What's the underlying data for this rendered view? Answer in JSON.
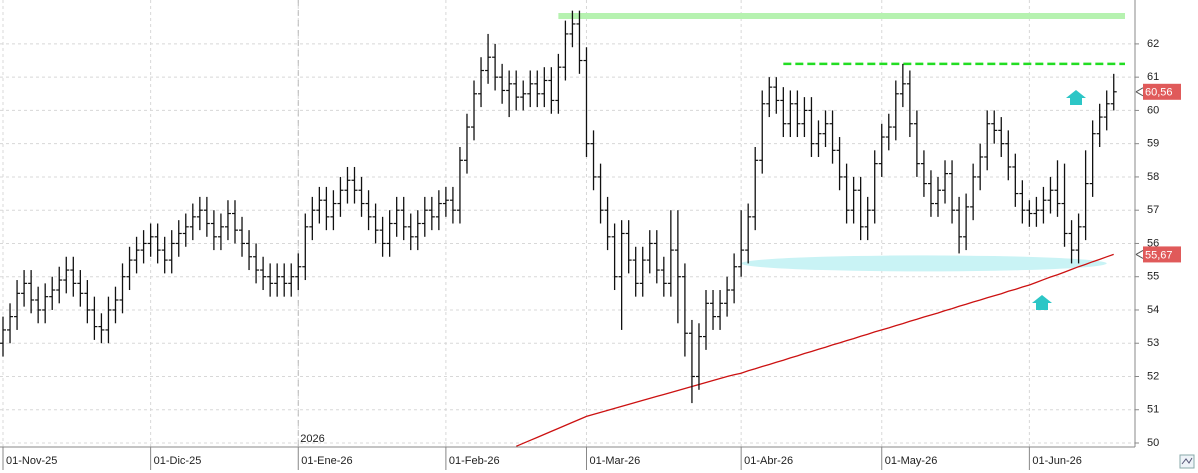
{
  "chart_data": {
    "type": "ohlc",
    "categories": [
      "01-Nov-25",
      null,
      null,
      null,
      null,
      null,
      null,
      null,
      null,
      null,
      null,
      null,
      null,
      null,
      null,
      null,
      null,
      null,
      null,
      null,
      null,
      "01-Dic-25",
      null,
      null,
      null,
      null,
      null,
      null,
      null,
      null,
      null,
      null,
      null,
      null,
      null,
      null,
      null,
      null,
      null,
      null,
      null,
      null,
      "01-Ene-26",
      null,
      null,
      null,
      null,
      null,
      null,
      null,
      null,
      null,
      null,
      null,
      null,
      null,
      null,
      null,
      null,
      null,
      null,
      null,
      null,
      "01-Feb-26",
      null,
      null,
      null,
      null,
      null,
      null,
      null,
      null,
      null,
      null,
      null,
      null,
      null,
      null,
      null,
      null,
      null,
      null,
      null,
      "01-Mar-26",
      null,
      null,
      null,
      null,
      null,
      null,
      null,
      null,
      null,
      null,
      null,
      null,
      null,
      null,
      null,
      null,
      null,
      null,
      null,
      null,
      null,
      "01-Abr-26",
      null,
      null,
      null,
      null,
      null,
      null,
      null,
      null,
      null,
      null,
      null,
      null,
      null,
      null,
      null,
      null,
      null,
      null,
      null,
      "01-May-26",
      null,
      null,
      null,
      null,
      null,
      null,
      null,
      null,
      null,
      null,
      null,
      null,
      null,
      null,
      null,
      null,
      null,
      null,
      null,
      null,
      "01-Jun-26",
      null,
      null,
      null,
      null,
      null,
      null,
      null,
      null,
      null,
      null,
      null,
      null
    ],
    "open": [
      53.0,
      53.4,
      53.8,
      54.5,
      54.8,
      54.3,
      54.0,
      54.4,
      54.6,
      54.9,
      55.2,
      54.8,
      54.5,
      54.0,
      53.5,
      53.4,
      54.0,
      54.3,
      55.0,
      55.5,
      55.8,
      56.0,
      56.2,
      55.8,
      55.5,
      56.0,
      56.3,
      56.5,
      56.8,
      57.0,
      56.6,
      56.2,
      56.5,
      56.9,
      56.4,
      56.0,
      55.6,
      55.2,
      55.0,
      54.8,
      55.0,
      54.8,
      55.0,
      55.3,
      56.5,
      57.0,
      57.3,
      56.8,
      57.2,
      57.6,
      57.9,
      57.6,
      57.2,
      56.8,
      56.4,
      56.0,
      56.6,
      57.0,
      56.5,
      56.2,
      56.6,
      57.0,
      56.8,
      57.2,
      57.3,
      57.0,
      58.5,
      59.5,
      60.5,
      61.2,
      61.6,
      61.0,
      60.6,
      60.8,
      60.4,
      60.5,
      60.8,
      60.5,
      60.9,
      60.3,
      61.3,
      62.3,
      62.6,
      61.5,
      59.0,
      58.0,
      57.0,
      56.2,
      55.0,
      56.3,
      55.5,
      54.8,
      55.5,
      56.0,
      55.2,
      54.8,
      55.8,
      55.0,
      53.3,
      52.0,
      53.2,
      54.2,
      53.8,
      54.2,
      54.6,
      55.3,
      55.8,
      56.8,
      58.5,
      60.2,
      60.7,
      60.3,
      59.6,
      60.2,
      59.6,
      60.0,
      59.0,
      59.3,
      59.6,
      58.8,
      58.0,
      57.0,
      57.6,
      56.5,
      57.0,
      58.4,
      59.2,
      59.5,
      60.5,
      60.8,
      59.6,
      58.4,
      57.8,
      57.2,
      57.6,
      58.1,
      57.0,
      56.2,
      57.1,
      58.0,
      58.6,
      59.6,
      59.4,
      59.0,
      58.3,
      57.5,
      57.0,
      56.9,
      57.0,
      57.3,
      57.6,
      57.2,
      56.3,
      55.8,
      56.5,
      57.8,
      59.3,
      59.8,
      60.2
    ],
    "high": [
      53.8,
      54.2,
      54.9,
      55.2,
      55.2,
      54.7,
      54.8,
      55.0,
      55.3,
      55.6,
      55.6,
      55.2,
      54.9,
      54.4,
      53.9,
      54.4,
      54.7,
      55.4,
      55.9,
      56.2,
      56.4,
      56.6,
      56.6,
      56.2,
      56.4,
      56.7,
      56.9,
      57.2,
      57.4,
      57.4,
      57.0,
      56.9,
      57.3,
      57.3,
      56.8,
      56.4,
      56.0,
      55.6,
      55.4,
      55.4,
      55.4,
      55.4,
      55.7,
      56.9,
      57.4,
      57.7,
      57.7,
      57.6,
      58.0,
      58.3,
      58.3,
      58.0,
      57.6,
      57.2,
      56.8,
      57.0,
      57.4,
      57.4,
      56.9,
      57.0,
      57.4,
      57.4,
      57.6,
      57.7,
      57.7,
      58.9,
      59.9,
      60.9,
      61.6,
      62.3,
      62.0,
      61.4,
      61.2,
      61.2,
      60.9,
      61.2,
      61.2,
      61.3,
      61.3,
      61.7,
      62.7,
      63.0,
      63.0,
      61.9,
      59.4,
      58.4,
      57.4,
      56.6,
      56.7,
      56.7,
      55.9,
      55.9,
      56.4,
      56.4,
      55.6,
      57.0,
      57.0,
      55.4,
      53.7,
      53.6,
      54.6,
      54.6,
      54.6,
      55.0,
      55.7,
      57.0,
      57.2,
      58.9,
      60.6,
      61.0,
      61.0,
      60.7,
      60.6,
      60.6,
      60.4,
      60.4,
      59.7,
      60.0,
      60.0,
      59.2,
      58.4,
      58.0,
      58.0,
      57.4,
      58.8,
      59.6,
      59.9,
      60.9,
      61.4,
      61.2,
      60.0,
      58.8,
      58.2,
      58.0,
      58.5,
      58.5,
      57.4,
      57.5,
      58.4,
      59.0,
      60.0,
      60.0,
      59.8,
      59.4,
      58.7,
      57.9,
      57.3,
      57.4,
      57.7,
      58.0,
      58.5,
      58.4,
      56.7,
      56.9,
      58.8,
      59.7,
      60.2,
      60.6,
      61.1
    ],
    "low": [
      52.6,
      53.0,
      53.4,
      54.1,
      53.9,
      53.6,
      53.6,
      54.0,
      54.2,
      54.5,
      54.4,
      54.1,
      53.6,
      53.1,
      53.0,
      53.0,
      53.6,
      53.9,
      54.6,
      55.1,
      55.4,
      55.6,
      55.4,
      55.1,
      55.1,
      55.6,
      55.9,
      56.1,
      56.4,
      56.2,
      55.8,
      55.8,
      56.1,
      56.0,
      55.6,
      55.2,
      54.8,
      54.6,
      54.4,
      54.4,
      54.4,
      54.4,
      54.6,
      54.9,
      56.1,
      56.6,
      56.4,
      56.4,
      56.8,
      57.2,
      57.2,
      56.8,
      56.4,
      56.0,
      55.6,
      55.6,
      56.2,
      56.1,
      55.8,
      55.8,
      56.2,
      56.4,
      56.4,
      56.8,
      56.6,
      56.6,
      58.1,
      59.1,
      60.1,
      60.8,
      60.6,
      60.2,
      59.8,
      60.0,
      60.0,
      60.1,
      60.1,
      60.1,
      59.9,
      59.9,
      60.9,
      61.9,
      61.1,
      58.6,
      57.6,
      56.6,
      55.8,
      54.6,
      53.4,
      55.1,
      54.4,
      54.4,
      55.1,
      54.8,
      54.4,
      54.4,
      53.6,
      52.6,
      51.2,
      51.6,
      52.8,
      53.4,
      53.4,
      53.8,
      54.2,
      55.0,
      55.4,
      56.4,
      58.1,
      59.8,
      59.9,
      59.2,
      59.2,
      59.2,
      59.2,
      58.6,
      58.6,
      58.9,
      58.4,
      57.6,
      56.6,
      56.6,
      56.1,
      56.1,
      56.6,
      58.0,
      58.8,
      59.1,
      60.1,
      59.2,
      58.0,
      57.4,
      56.8,
      56.8,
      57.2,
      56.6,
      55.7,
      55.8,
      56.7,
      57.6,
      58.2,
      59.0,
      58.6,
      57.9,
      57.1,
      56.6,
      56.5,
      56.5,
      56.6,
      56.9,
      56.8,
      55.9,
      55.4,
      55.4,
      56.1,
      57.4,
      58.9,
      59.4,
      60.0
    ],
    "close": [
      53.4,
      53.8,
      54.5,
      54.8,
      54.3,
      54.0,
      54.4,
      54.6,
      54.9,
      55.2,
      54.8,
      54.5,
      54.0,
      53.5,
      53.4,
      54.0,
      54.3,
      55.0,
      55.5,
      55.8,
      56.0,
      56.2,
      55.8,
      55.5,
      56.0,
      56.3,
      56.5,
      56.8,
      57.0,
      56.6,
      56.2,
      56.5,
      56.9,
      56.4,
      56.0,
      55.6,
      55.2,
      55.0,
      54.8,
      55.0,
      54.8,
      55.0,
      55.3,
      56.5,
      57.0,
      57.3,
      56.8,
      57.2,
      57.6,
      57.9,
      57.6,
      57.2,
      56.8,
      56.4,
      56.0,
      56.6,
      57.0,
      56.5,
      56.2,
      56.6,
      57.0,
      56.8,
      57.2,
      57.3,
      57.0,
      58.5,
      59.5,
      60.5,
      61.2,
      61.6,
      61.0,
      60.6,
      60.8,
      60.4,
      60.5,
      60.8,
      60.5,
      60.9,
      60.3,
      61.3,
      62.3,
      62.6,
      61.5,
      59.0,
      58.0,
      57.0,
      56.2,
      55.0,
      56.3,
      55.5,
      54.8,
      55.5,
      56.0,
      55.2,
      54.8,
      55.8,
      55.0,
      53.3,
      52.0,
      53.2,
      54.2,
      53.8,
      54.2,
      54.6,
      55.3,
      55.8,
      56.8,
      58.5,
      60.2,
      60.7,
      60.3,
      59.6,
      60.2,
      59.6,
      60.0,
      59.0,
      59.3,
      59.6,
      58.8,
      58.0,
      57.0,
      57.6,
      56.5,
      57.0,
      58.4,
      59.2,
      59.5,
      60.5,
      60.8,
      59.6,
      58.4,
      57.8,
      57.2,
      57.6,
      58.1,
      57.0,
      56.2,
      57.1,
      58.0,
      58.6,
      59.6,
      59.4,
      59.0,
      58.3,
      57.5,
      57.0,
      56.9,
      57.0,
      57.3,
      57.6,
      57.2,
      56.3,
      55.8,
      56.5,
      57.8,
      59.3,
      59.8,
      60.2,
      60.56
    ],
    "bar_color": "#111111",
    "ma": {
      "color": "#cc1111",
      "values": [
        null,
        null,
        null,
        null,
        null,
        null,
        null,
        null,
        null,
        null,
        null,
        null,
        null,
        null,
        null,
        null,
        null,
        null,
        null,
        null,
        null,
        null,
        null,
        null,
        null,
        null,
        null,
        null,
        null,
        null,
        null,
        null,
        null,
        null,
        null,
        null,
        null,
        null,
        null,
        null,
        null,
        null,
        null,
        null,
        null,
        null,
        null,
        null,
        null,
        null,
        null,
        null,
        null,
        null,
        null,
        null,
        null,
        null,
        null,
        null,
        null,
        null,
        null,
        null,
        null,
        null,
        null,
        null,
        null,
        null,
        null,
        null,
        null,
        49.9,
        49.99,
        50.08,
        50.17,
        50.26,
        50.35,
        50.44,
        50.53,
        50.62,
        50.71,
        50.8,
        50.86,
        50.92,
        50.98,
        51.04,
        51.1,
        51.16,
        51.22,
        51.28,
        51.34,
        51.4,
        51.46,
        51.52,
        51.58,
        51.64,
        51.7,
        51.76,
        51.82,
        51.88,
        51.94,
        52.0,
        52.05,
        52.1,
        52.17,
        52.23,
        52.3,
        52.36,
        52.43,
        52.49,
        52.56,
        52.62,
        52.69,
        52.75,
        52.82,
        52.88,
        52.95,
        53.01,
        53.08,
        53.14,
        53.21,
        53.27,
        53.34,
        53.4,
        53.46,
        53.53,
        53.59,
        53.66,
        53.72,
        53.79,
        53.85,
        53.91,
        53.98,
        54.04,
        54.11,
        54.17,
        54.24,
        54.3,
        54.37,
        54.43,
        54.49,
        54.56,
        54.62,
        54.69,
        54.75,
        54.83,
        54.91,
        54.99,
        55.06,
        55.14,
        55.22,
        55.3,
        55.37,
        55.45,
        55.52,
        55.6,
        55.67
      ]
    },
    "hlines": [
      {
        "value": 62.84,
        "color": "#b6f2b0",
        "dashed": false,
        "from": 79
      },
      {
        "value": 61.4,
        "color": "#22dd22",
        "dashed": true,
        "from": 111
      }
    ],
    "zone": {
      "value": 55.4,
      "from": 105,
      "to": 157,
      "color": "#c9f3f5"
    },
    "last_labels": [
      {
        "value": 60.56,
        "label": "60,56",
        "color": "#e05a5a"
      },
      {
        "value": 55.67,
        "label": "55,67",
        "color": "#e05a5a"
      }
    ],
    "annotation": "2026",
    "ylim": [
      49.88,
      63.32
    ],
    "yticks": [
      50,
      51,
      52,
      53,
      54,
      55,
      56,
      57,
      58,
      59,
      60,
      61,
      62
    ],
    "grid": true
  }
}
